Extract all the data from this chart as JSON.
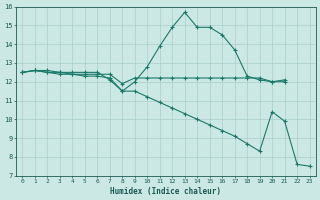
{
  "line1_x": [
    0,
    1,
    2,
    3,
    4,
    5,
    6,
    7,
    8,
    9,
    10,
    11,
    12,
    13,
    14,
    15,
    16,
    17,
    18,
    19,
    20,
    21
  ],
  "line1_y": [
    12.5,
    12.6,
    12.6,
    12.5,
    12.5,
    12.5,
    12.5,
    12.1,
    11.5,
    12.0,
    12.8,
    13.9,
    14.9,
    15.7,
    14.9,
    14.9,
    14.5,
    13.7,
    12.3,
    12.1,
    12.0,
    12.1
  ],
  "line2_x": [
    0,
    1,
    2,
    3,
    4,
    5,
    6,
    7,
    8,
    9,
    10,
    11,
    12,
    13,
    14,
    15,
    16,
    17,
    18,
    19,
    20,
    21
  ],
  "line2_y": [
    12.5,
    12.6,
    12.5,
    12.5,
    12.4,
    12.4,
    12.4,
    12.4,
    11.9,
    12.2,
    12.2,
    12.2,
    12.2,
    12.2,
    12.2,
    12.2,
    12.2,
    12.2,
    12.2,
    12.2,
    12.0,
    12.0
  ],
  "line3_x": [
    0,
    1,
    2,
    3,
    4,
    5,
    6,
    7,
    8,
    9,
    10,
    11,
    12,
    13,
    14,
    15,
    16,
    17,
    18,
    19,
    20,
    21,
    22,
    23
  ],
  "line3_y": [
    12.5,
    12.6,
    12.5,
    12.4,
    12.4,
    12.3,
    12.3,
    12.2,
    11.5,
    11.5,
    11.2,
    10.9,
    10.6,
    10.3,
    10.0,
    9.7,
    9.4,
    9.1,
    8.7,
    8.3,
    10.4,
    9.9,
    7.6,
    7.5
  ],
  "color": "#1a7a6a",
  "bg_color": "#cce8e4",
  "grid_color": "#aacfcc",
  "xlabel": "Humidex (Indice chaleur)",
  "xlim": [
    -0.5,
    23.5
  ],
  "ylim": [
    7,
    16
  ],
  "yticks": [
    7,
    8,
    9,
    10,
    11,
    12,
    13,
    14,
    15,
    16
  ],
  "xticks": [
    0,
    1,
    2,
    3,
    4,
    5,
    6,
    7,
    8,
    9,
    10,
    11,
    12,
    13,
    14,
    15,
    16,
    17,
    18,
    19,
    20,
    21,
    22,
    23
  ]
}
